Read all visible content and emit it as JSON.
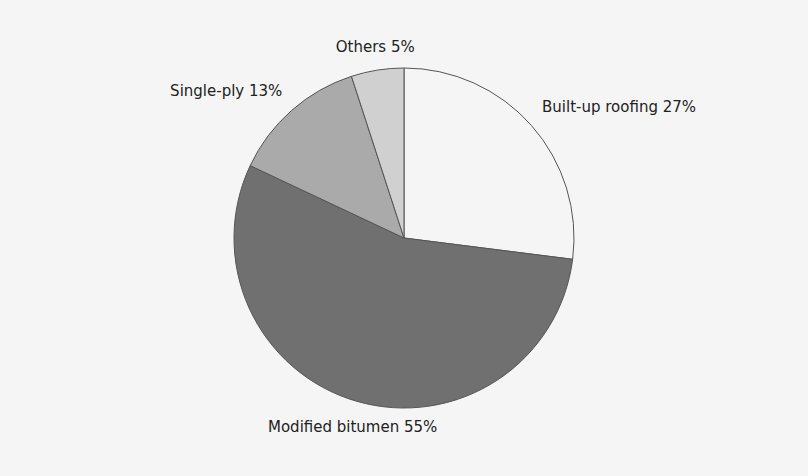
{
  "chart_data": {
    "type": "pie",
    "categories": [
      "Built-up roofing 27%",
      "Modified bitumen 55%",
      "Single-ply 13%",
      "Others 5%"
    ],
    "values": [
      27,
      55,
      13,
      5
    ],
    "colors": [
      "#f5f5f5",
      "#707070",
      "#aaaaaa",
      "#d0d0d0"
    ]
  }
}
